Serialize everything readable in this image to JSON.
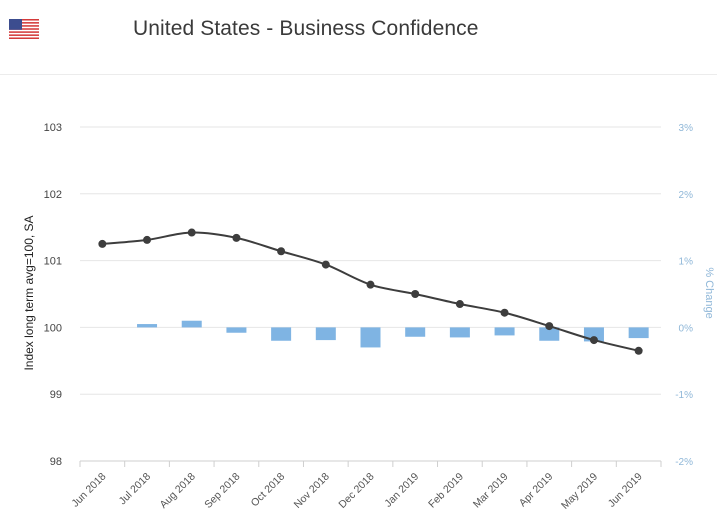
{
  "header": {
    "title": "United States - Business Confidence",
    "flag_icon": "us-flag-icon"
  },
  "chart_data": {
    "type": "line",
    "title": "United States - Business Confidence",
    "categories": [
      "Jun 2018",
      "Jul 2018",
      "Aug 2018",
      "Sep 2018",
      "Oct 2018",
      "Nov 2018",
      "Dec 2018",
      "Jan 2019",
      "Feb 2019",
      "Mar 2019",
      "Apr 2019",
      "May 2019",
      "Jun 2019"
    ],
    "series": [
      {
        "type": "line",
        "axis": "left",
        "color": "#3d3d3d",
        "values": [
          101.25,
          101.31,
          101.42,
          101.34,
          101.14,
          100.94,
          100.64,
          100.5,
          100.35,
          100.22,
          100.02,
          99.81,
          99.65
        ]
      },
      {
        "type": "bar",
        "axis": "right",
        "color": "#7fb4e3",
        "values": [
          null,
          0.05,
          0.1,
          -0.08,
          -0.2,
          -0.19,
          -0.3,
          -0.14,
          -0.15,
          -0.12,
          -0.2,
          -0.21,
          -0.16
        ]
      }
    ],
    "y_left": {
      "label": "Index long term avg=100, SA",
      "ticks": [
        "98",
        "99",
        "100",
        "101",
        "102",
        "103"
      ],
      "range": [
        98,
        103
      ]
    },
    "y_right": {
      "label": "% Change",
      "ticks": [
        "-2%",
        "-1%",
        "0%",
        "1%",
        "2%",
        "3%"
      ],
      "range": [
        -2,
        3
      ]
    },
    "grid": true,
    "legend": "none"
  }
}
